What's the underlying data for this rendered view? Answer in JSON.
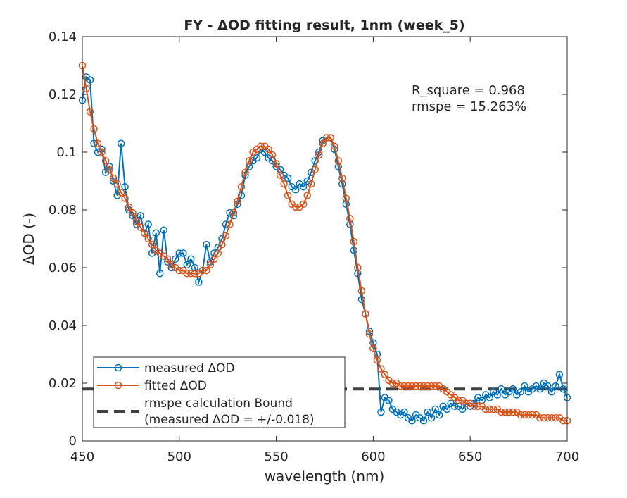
{
  "chart_data": {
    "type": "line",
    "title": "FY - ΔOD fitting result, 1nm (week_5)",
    "x_label": "wavelength (nm)",
    "y_label": "ΔOD (-)",
    "xlim": [
      450,
      700
    ],
    "xticks": [
      450,
      500,
      550,
      600,
      650,
      700
    ],
    "ylim": [
      0,
      0.14
    ],
    "yticks": [
      0,
      0.02,
      0.04,
      0.06,
      0.08,
      0.1,
      0.12,
      0.14
    ],
    "legend": "lower left",
    "annotations": [
      "R_square = 0.968",
      "rmspe = 15.263%"
    ],
    "x": [
      450,
      452,
      454,
      456,
      458,
      460,
      462,
      464,
      466,
      468,
      470,
      472,
      474,
      476,
      478,
      480,
      482,
      484,
      486,
      488,
      490,
      492,
      494,
      496,
      498,
      500,
      502,
      504,
      506,
      508,
      510,
      512,
      514,
      516,
      518,
      520,
      522,
      524,
      526,
      528,
      530,
      532,
      534,
      536,
      538,
      540,
      542,
      544,
      546,
      548,
      550,
      552,
      554,
      556,
      558,
      560,
      562,
      564,
      566,
      568,
      570,
      572,
      574,
      576,
      578,
      580,
      582,
      584,
      586,
      588,
      590,
      592,
      594,
      596,
      598,
      600,
      602,
      604,
      606,
      608,
      610,
      612,
      614,
      616,
      618,
      620,
      622,
      624,
      626,
      628,
      630,
      632,
      634,
      636,
      638,
      640,
      642,
      644,
      646,
      648,
      650,
      652,
      654,
      656,
      658,
      660,
      662,
      664,
      666,
      668,
      670,
      672,
      674,
      676,
      678,
      680,
      682,
      684,
      686,
      688,
      690,
      692,
      694,
      696,
      698,
      700
    ],
    "series": [
      {
        "name": "measured ΔOD",
        "color": "#0072bd",
        "marker": "o",
        "values": [
          0.118,
          0.126,
          0.125,
          0.103,
          0.1,
          0.101,
          0.093,
          0.095,
          0.09,
          0.085,
          0.103,
          0.088,
          0.08,
          0.078,
          0.075,
          0.078,
          0.072,
          0.075,
          0.065,
          0.072,
          0.058,
          0.073,
          0.062,
          0.06,
          0.063,
          0.065,
          0.065,
          0.061,
          0.063,
          0.06,
          0.055,
          0.059,
          0.068,
          0.062,
          0.065,
          0.067,
          0.07,
          0.075,
          0.079,
          0.078,
          0.082,
          0.085,
          0.092,
          0.095,
          0.097,
          0.098,
          0.101,
          0.1,
          0.098,
          0.097,
          0.095,
          0.094,
          0.092,
          0.091,
          0.088,
          0.087,
          0.089,
          0.088,
          0.09,
          0.093,
          0.097,
          0.1,
          0.104,
          0.105,
          0.105,
          0.101,
          0.095,
          0.089,
          0.082,
          0.075,
          0.066,
          0.058,
          0.049,
          0.044,
          0.038,
          0.034,
          0.03,
          0.01,
          0.015,
          0.014,
          0.011,
          0.01,
          0.009,
          0.01,
          0.008,
          0.007,
          0.009,
          0.008,
          0.007,
          0.01,
          0.008,
          0.011,
          0.009,
          0.012,
          0.011,
          0.013,
          0.012,
          0.012,
          0.011,
          0.013,
          0.012,
          0.013,
          0.015,
          0.014,
          0.016,
          0.015,
          0.017,
          0.016,
          0.018,
          0.016,
          0.017,
          0.018,
          0.016,
          0.017,
          0.019,
          0.017,
          0.018,
          0.019,
          0.018,
          0.02,
          0.019,
          0.017,
          0.019,
          0.023,
          0.018,
          0.015
        ]
      },
      {
        "name": "fitted ΔOD",
        "color": "#d95319",
        "marker": "o",
        "values": [
          0.13,
          0.122,
          0.114,
          0.108,
          0.103,
          0.1,
          0.097,
          0.094,
          0.091,
          0.089,
          0.086,
          0.084,
          0.081,
          0.079,
          0.076,
          0.074,
          0.072,
          0.07,
          0.068,
          0.066,
          0.065,
          0.064,
          0.063,
          0.061,
          0.06,
          0.059,
          0.059,
          0.058,
          0.058,
          0.058,
          0.058,
          0.059,
          0.059,
          0.061,
          0.063,
          0.065,
          0.068,
          0.071,
          0.075,
          0.079,
          0.083,
          0.088,
          0.093,
          0.097,
          0.1,
          0.101,
          0.102,
          0.102,
          0.101,
          0.099,
          0.096,
          0.092,
          0.089,
          0.085,
          0.082,
          0.081,
          0.081,
          0.082,
          0.085,
          0.089,
          0.094,
          0.099,
          0.103,
          0.105,
          0.105,
          0.102,
          0.097,
          0.091,
          0.084,
          0.077,
          0.069,
          0.06,
          0.052,
          0.044,
          0.037,
          0.032,
          0.028,
          0.025,
          0.023,
          0.021,
          0.02,
          0.02,
          0.019,
          0.019,
          0.019,
          0.019,
          0.019,
          0.019,
          0.019,
          0.019,
          0.019,
          0.019,
          0.019,
          0.018,
          0.017,
          0.016,
          0.015,
          0.014,
          0.014,
          0.013,
          0.013,
          0.012,
          0.012,
          0.012,
          0.011,
          0.011,
          0.011,
          0.011,
          0.01,
          0.01,
          0.01,
          0.01,
          0.01,
          0.009,
          0.009,
          0.009,
          0.009,
          0.009,
          0.008,
          0.008,
          0.008,
          0.008,
          0.008,
          0.008,
          0.007,
          0.007
        ]
      }
    ],
    "bound": {
      "name": [
        "rmspe calculation Bound",
        "(measured ΔOD = +/-0.018)"
      ],
      "value": 0.018,
      "color": "#404040",
      "style": "dashed"
    }
  }
}
